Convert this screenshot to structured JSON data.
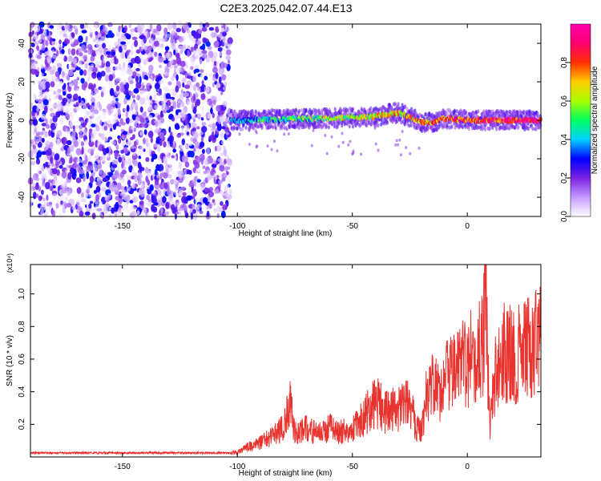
{
  "figure": {
    "title": "C2E3.2025.042.07.44.E13"
  },
  "chart_data": [
    {
      "type": "heatmap",
      "xlabel": "Height of straight line (km)",
      "ylabel": "Frequency (Hz)",
      "xlim": [
        -190,
        32
      ],
      "ylim": [
        -50,
        50
      ],
      "x_ticks": [
        -150,
        -100,
        -50,
        0
      ],
      "y_ticks": [
        -40,
        -20,
        0,
        20,
        40
      ],
      "colorbar": {
        "label": "Normalized spectral amplitude",
        "range": [
          0,
          1
        ],
        "ticks": [
          0.0,
          0.2,
          0.4,
          0.6,
          0.8
        ],
        "colormap": [
          "#ffffff",
          "#c49aff",
          "#7a20e0",
          "#0000ff",
          "#00d2ff",
          "#00ff60",
          "#a8ff00",
          "#ffcc00",
          "#ff3000",
          "#ff0070",
          "#ff00b0"
        ]
      },
      "regions": [
        {
          "x_range": [
            -190,
            -103
          ],
          "y_range": [
            -50,
            50
          ],
          "amplitude_range": [
            0.0,
            0.18
          ],
          "character": "scattered noise"
        },
        {
          "x_range": [
            -103,
            32
          ],
          "y_center_km_hz": [
            [
              -100,
              0
            ],
            [
              -60,
              1
            ],
            [
              -40,
              2
            ],
            [
              -30,
              4
            ],
            [
              -20,
              -1
            ],
            [
              -15,
              -1
            ],
            [
              -10,
              1
            ],
            [
              0,
              0
            ],
            [
              32,
              0
            ]
          ],
          "band_width_hz": 6,
          "amplitude_range": [
            0.2,
            1.0
          ],
          "character": "narrow carrier band"
        }
      ]
    },
    {
      "type": "line",
      "xlabel": "Height of straight line (km)",
      "ylabel": "SNR (10 * v/v)",
      "y_multiplier_label": "(x10⁴)",
      "xlim": [
        -190,
        32
      ],
      "ylim": [
        0,
        1.18
      ],
      "x_ticks": [
        -150,
        -100,
        -50,
        0
      ],
      "y_ticks": [
        0.2,
        0.4,
        0.6,
        0.8,
        1.0
      ],
      "color": "#e8332f",
      "series": [
        {
          "x": [
            -190,
            -170,
            -150,
            -130,
            -110,
            -103,
            -100,
            -95,
            -90,
            -85,
            -80,
            -77,
            -75,
            -70,
            -65,
            -60,
            -55,
            -50,
            -45,
            -40,
            -35,
            -30,
            -25,
            -22,
            -20,
            -18,
            -15,
            -12,
            -10,
            -5,
            0,
            5,
            7,
            8,
            9,
            10,
            12,
            15,
            20,
            25,
            30,
            32
          ],
          "values": [
            0.025,
            0.025,
            0.025,
            0.025,
            0.025,
            0.025,
            0.03,
            0.07,
            0.1,
            0.14,
            0.2,
            0.38,
            0.16,
            0.2,
            0.15,
            0.2,
            0.17,
            0.2,
            0.27,
            0.38,
            0.3,
            0.33,
            0.36,
            0.2,
            0.18,
            0.4,
            0.5,
            0.42,
            0.52,
            0.58,
            0.66,
            0.72,
            0.82,
            1.18,
            0.55,
            0.2,
            0.58,
            0.72,
            0.68,
            0.72,
            0.8,
            0.78
          ]
        }
      ]
    }
  ]
}
